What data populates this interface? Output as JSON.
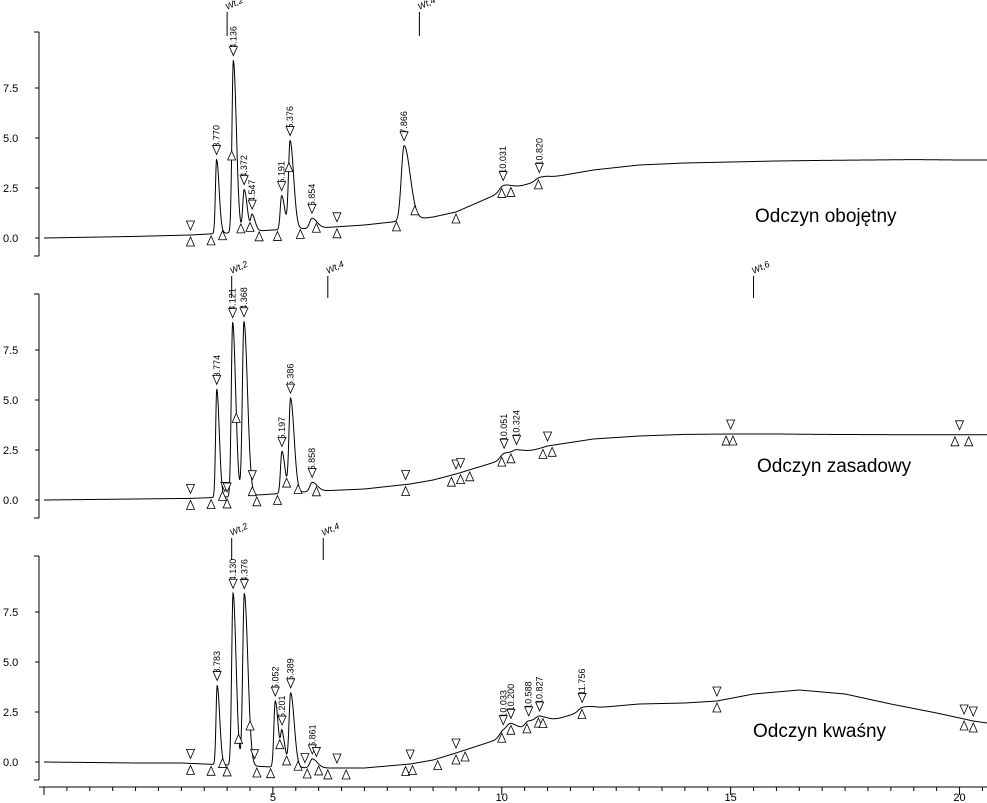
{
  "chart_data": {
    "type": "line",
    "xlim": [
      0,
      20.6
    ],
    "x_ticks": [
      "5",
      "10",
      "15",
      "20"
    ],
    "x_tick_values": [
      5,
      10,
      15,
      20
    ],
    "y_ticks": [
      "0.0",
      "2.5",
      "5.0",
      "7.5"
    ],
    "y_tick_values": [
      0,
      2.5,
      5,
      7.5
    ],
    "grid": false,
    "panels": [
      {
        "label": "Odczyn obojętny",
        "ylim": [
          -0.9,
          10.3
        ],
        "events": [
          {
            "x": 4.0,
            "label": "Wt,2"
          },
          {
            "x": 8.2,
            "label": "Wt,4"
          }
        ],
        "baseline": [
          [
            0,
            0
          ],
          [
            2,
            0.08
          ],
          [
            3.2,
            0.15
          ],
          [
            4,
            0.25
          ],
          [
            5,
            0.4
          ],
          [
            6,
            0.5
          ],
          [
            7,
            0.65
          ],
          [
            8,
            0.9
          ],
          [
            8.5,
            1.05
          ],
          [
            9,
            1.3
          ],
          [
            10,
            2.3
          ],
          [
            11,
            3.0
          ],
          [
            12,
            3.4
          ],
          [
            13,
            3.65
          ],
          [
            14,
            3.75
          ],
          [
            15,
            3.8
          ],
          [
            16,
            3.85
          ],
          [
            17,
            3.88
          ],
          [
            18,
            3.9
          ],
          [
            19,
            3.92
          ],
          [
            20,
            3.9
          ],
          [
            20.6,
            3.9
          ]
        ],
        "peaks": [
          {
            "rt": 3.77,
            "label": "3.770",
            "height": 3.7,
            "width": 0.025
          },
          {
            "rt": 4.136,
            "label": "4.136",
            "height": 8.6,
            "width": 0.03
          },
          {
            "rt": 4.372,
            "label": "4.372",
            "height": 2.1,
            "width": 0.03
          },
          {
            "rt": 4.547,
            "label": "4.547",
            "height": 0.8,
            "width": 0.03
          },
          {
            "rt": 5.191,
            "label": "5.191",
            "height": 1.7,
            "width": 0.03
          },
          {
            "rt": 5.376,
            "label": "5.376",
            "height": 4.4,
            "width": 0.035
          },
          {
            "rt": 5.854,
            "label": "5.854",
            "height": 0.5,
            "width": 0.05
          },
          {
            "rt": 7.866,
            "label": "7.866",
            "height": 3.75,
            "width": 0.06
          },
          {
            "rt": 10.031,
            "label": "10.031",
            "height": 0.3,
            "width": 0.08
          },
          {
            "rt": 10.82,
            "label": "10.820",
            "height": 0.15,
            "width": 0.08
          }
        ],
        "markers_down": [
          3.2,
          3.77,
          4.136,
          4.372,
          4.547,
          5.191,
          5.376,
          5.854,
          6.4,
          7.866,
          10.031,
          10.82
        ],
        "markers_up": [
          3.2,
          3.65,
          3.9,
          4.1,
          4.3,
          4.5,
          4.7,
          5.1,
          5.35,
          5.6,
          5.95,
          6.4,
          7.7,
          8.1,
          9.0,
          10.0,
          10.2,
          10.8
        ]
      },
      {
        "label": "Odczyn zasadowy",
        "ylim": [
          -0.9,
          10.3
        ],
        "events": [
          {
            "x": 4.1,
            "label": "Wt,2"
          },
          {
            "x": 6.2,
            "label": "Wt,4"
          },
          {
            "x": 15.5,
            "label": "Wt,6"
          }
        ],
        "baseline": [
          [
            0,
            0
          ],
          [
            2,
            0.05
          ],
          [
            3.2,
            0.08
          ],
          [
            4,
            0.15
          ],
          [
            5,
            0.3
          ],
          [
            6,
            0.45
          ],
          [
            7,
            0.55
          ],
          [
            8,
            0.8
          ],
          [
            8.5,
            1.0
          ],
          [
            9,
            1.3
          ],
          [
            10,
            2.0
          ],
          [
            11,
            2.7
          ],
          [
            12,
            3.05
          ],
          [
            13,
            3.2
          ],
          [
            14,
            3.28
          ],
          [
            15,
            3.3
          ],
          [
            16,
            3.3
          ],
          [
            17,
            3.28
          ],
          [
            18,
            3.27
          ],
          [
            19,
            3.26
          ],
          [
            20,
            3.26
          ],
          [
            20.6,
            3.26
          ]
        ],
        "peaks": [
          {
            "rt": 3.774,
            "label": "3.774",
            "height": 5.4,
            "width": 0.025
          },
          {
            "rt": 4.121,
            "label": "4.121",
            "height": 8.7,
            "width": 0.03
          },
          {
            "rt": 4.368,
            "label": "4.368",
            "height": 8.7,
            "width": 0.035
          },
          {
            "rt": 5.197,
            "label": "5.197",
            "height": 2.1,
            "width": 0.03
          },
          {
            "rt": 5.386,
            "label": "5.386",
            "height": 4.7,
            "width": 0.035
          },
          {
            "rt": 5.858,
            "label": "5.858",
            "height": 0.45,
            "width": 0.05
          },
          {
            "rt": 10.051,
            "label": "10.051",
            "height": 0.3,
            "width": 0.08
          },
          {
            "rt": 10.324,
            "label": "10.324",
            "height": 0.2,
            "width": 0.08
          }
        ],
        "markers_down": [
          3.2,
          3.774,
          3.95,
          4.0,
          4.121,
          4.368,
          4.55,
          5.197,
          5.386,
          5.858,
          7.9,
          9.0,
          9.1,
          10.051,
          10.324,
          11.0,
          15.0,
          20.0
        ],
        "markers_up": [
          3.2,
          3.65,
          3.9,
          4.0,
          4.2,
          4.55,
          4.65,
          5.1,
          5.3,
          5.55,
          5.95,
          7.9,
          8.9,
          9.1,
          9.3,
          10.0,
          10.2,
          10.9,
          11.1,
          14.9,
          15.05,
          19.9,
          20.2
        ]
      },
      {
        "label": "Odczyn kwaśny",
        "ylim": [
          -0.9,
          10.3
        ],
        "events": [
          {
            "x": 4.1,
            "label": "Wt,2"
          },
          {
            "x": 6.1,
            "label": "Wt,4"
          }
        ],
        "baseline": [
          [
            0,
            0
          ],
          [
            2,
            -0.05
          ],
          [
            3,
            -0.05
          ],
          [
            4,
            -0.15
          ],
          [
            5,
            -0.25
          ],
          [
            6,
            -0.3
          ],
          [
            7,
            -0.3
          ],
          [
            8,
            -0.1
          ],
          [
            8.5,
            0.1
          ],
          [
            9,
            0.45
          ],
          [
            10,
            1.2
          ],
          [
            11,
            2.0
          ],
          [
            12,
            2.7
          ],
          [
            13,
            2.9
          ],
          [
            14,
            2.95
          ],
          [
            14.7,
            3.05
          ],
          [
            15.5,
            3.4
          ],
          [
            16.5,
            3.6
          ],
          [
            17.5,
            3.4
          ],
          [
            18.5,
            2.9
          ],
          [
            19.5,
            2.45
          ],
          [
            20.3,
            2.05
          ],
          [
            20.6,
            1.95
          ]
        ],
        "peaks": [
          {
            "rt": 3.783,
            "label": "3.783",
            "height": 3.95,
            "width": 0.025
          },
          {
            "rt": 4.13,
            "label": "4.130",
            "height": 8.6,
            "width": 0.03
          },
          {
            "rt": 4.376,
            "label": "4.376",
            "height": 8.6,
            "width": 0.035
          },
          {
            "rt": 5.052,
            "label": "5.052",
            "height": 3.3,
            "width": 0.03
          },
          {
            "rt": 5.201,
            "label": "5.201",
            "height": 1.6,
            "width": 0.03
          },
          {
            "rt": 5.389,
            "label": "5.389",
            "height": 3.7,
            "width": 0.035
          },
          {
            "rt": 5.861,
            "label": "5.861",
            "height": 0.45,
            "width": 0.05
          },
          {
            "rt": 10.033,
            "label": "10.033",
            "height": 0.35,
            "width": 0.08
          },
          {
            "rt": 10.2,
            "label": "10.200",
            "height": 0.35,
            "width": 0.08
          },
          {
            "rt": 10.588,
            "label": "10.588",
            "height": 0.35,
            "width": 0.08
          },
          {
            "rt": 10.827,
            "label": "10.827",
            "height": 0.3,
            "width": 0.08
          },
          {
            "rt": 11.756,
            "label": "11.756",
            "height": 0.2,
            "width": 0.08
          }
        ],
        "markers_down": [
          3.2,
          3.783,
          4.13,
          4.376,
          4.6,
          5.052,
          5.201,
          5.389,
          5.7,
          5.861,
          5.95,
          6.4,
          8.0,
          9.0,
          10.033,
          10.2,
          10.588,
          10.827,
          11.756,
          14.7,
          20.1,
          20.3
        ],
        "markers_up": [
          3.2,
          3.65,
          3.9,
          4.0,
          4.25,
          4.5,
          4.65,
          4.95,
          5.15,
          5.3,
          5.55,
          5.75,
          6.0,
          6.2,
          6.6,
          7.9,
          8.05,
          8.6,
          9.0,
          9.2,
          10.0,
          10.2,
          10.55,
          10.8,
          10.9,
          11.75,
          14.7,
          20.1,
          20.3
        ]
      }
    ]
  }
}
